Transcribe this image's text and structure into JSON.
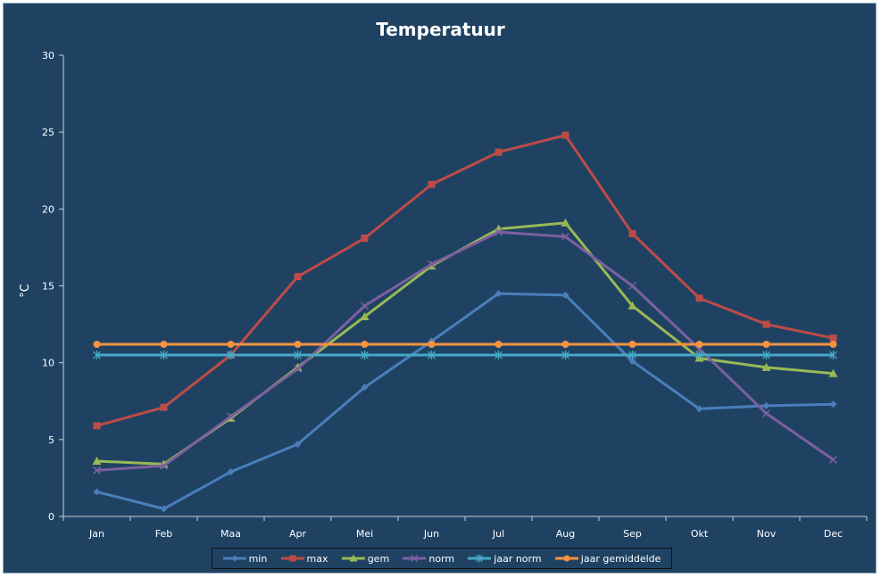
{
  "chart_data": {
    "type": "line",
    "title": "Temperatuur",
    "ylabel": "°C",
    "xlabel": "",
    "ylim": [
      0,
      30
    ],
    "yticks": [
      0,
      5,
      10,
      15,
      20,
      25,
      30
    ],
    "categories": [
      "Jan",
      "Feb",
      "Maa",
      "Apr",
      "Mei",
      "Jun",
      "Jul",
      "Aug",
      "Sep",
      "Okt",
      "Nov",
      "Dec"
    ],
    "grid": false,
    "legend_position": "bottom",
    "series": [
      {
        "name": "min",
        "color": "#4a7ebb",
        "marker": "diamond",
        "values": [
          1.6,
          0.5,
          2.9,
          4.7,
          8.4,
          11.4,
          14.5,
          14.4,
          10.1,
          7.0,
          7.2,
          7.3
        ]
      },
      {
        "name": "max",
        "color": "#be4b48",
        "marker": "square",
        "values": [
          5.9,
          7.1,
          10.5,
          15.6,
          18.1,
          21.6,
          23.7,
          24.8,
          18.4,
          14.2,
          12.5,
          11.6
        ]
      },
      {
        "name": "gem",
        "color": "#98b954",
        "marker": "triangle",
        "values": [
          3.6,
          3.4,
          6.4,
          9.7,
          13.0,
          16.3,
          18.7,
          19.1,
          13.7,
          10.3,
          9.7,
          9.3
        ]
      },
      {
        "name": "norm",
        "color": "#7d60a0",
        "marker": "x",
        "values": [
          3.0,
          3.3,
          6.5,
          9.6,
          13.7,
          16.4,
          18.5,
          18.2,
          15.0,
          10.9,
          6.7,
          3.7
        ]
      },
      {
        "name": "jaar norm",
        "color": "#46aac5",
        "marker": "asterisk",
        "values": [
          10.5,
          10.5,
          10.5,
          10.5,
          10.5,
          10.5,
          10.5,
          10.5,
          10.5,
          10.5,
          10.5,
          10.5
        ]
      },
      {
        "name": "jaar gemiddelde",
        "color": "#f69240",
        "marker": "circle",
        "values": [
          11.2,
          11.2,
          11.2,
          11.2,
          11.2,
          11.2,
          11.2,
          11.2,
          11.2,
          11.2,
          11.2,
          11.2
        ]
      }
    ]
  }
}
